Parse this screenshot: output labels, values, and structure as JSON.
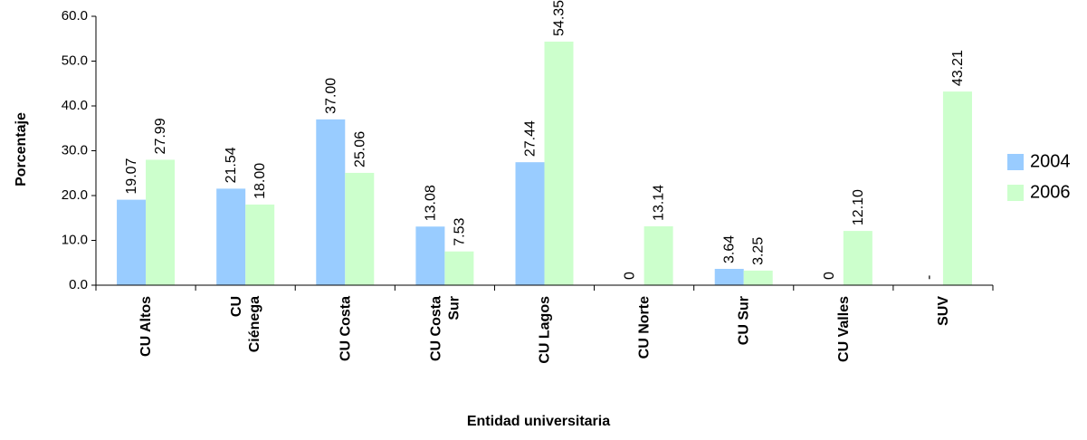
{
  "chart_data": {
    "type": "bar",
    "xlabel": "Entidad universitaria",
    "ylabel": "Porcentaje",
    "ylim": [
      0,
      60
    ],
    "yticks": [
      "0.0",
      "10.0",
      "20.0",
      "30.0",
      "40.0",
      "50.0",
      "60.0"
    ],
    "grid": false,
    "legend_position": "right",
    "categories": [
      [
        "CU Altos"
      ],
      [
        "CU",
        "Ciénega"
      ],
      [
        "CU Costa"
      ],
      [
        "CU Costa",
        "Sur"
      ],
      [
        "CU Lagos"
      ],
      [
        "CU Norte"
      ],
      [
        "CU Sur"
      ],
      [
        "CU Valles"
      ],
      [
        "SUV"
      ]
    ],
    "series": [
      {
        "name": "2004",
        "color": "#99CCFF",
        "values": [
          19.07,
          21.54,
          37.0,
          13.08,
          27.44,
          0,
          3.64,
          0,
          null
        ],
        "labels": [
          "19.07",
          "21.54",
          "37.00",
          "13.08",
          "27.44",
          "0",
          "3.64",
          "0",
          "-"
        ]
      },
      {
        "name": "2006",
        "color": "#CCFFCC",
        "values": [
          27.99,
          18.0,
          25.06,
          7.53,
          54.35,
          13.14,
          3.25,
          12.1,
          43.21
        ],
        "labels": [
          "27.99",
          "18.00",
          "25.06",
          "7.53",
          "54.35",
          "13.14",
          "3.25",
          "12.10",
          "43.21"
        ]
      }
    ]
  }
}
